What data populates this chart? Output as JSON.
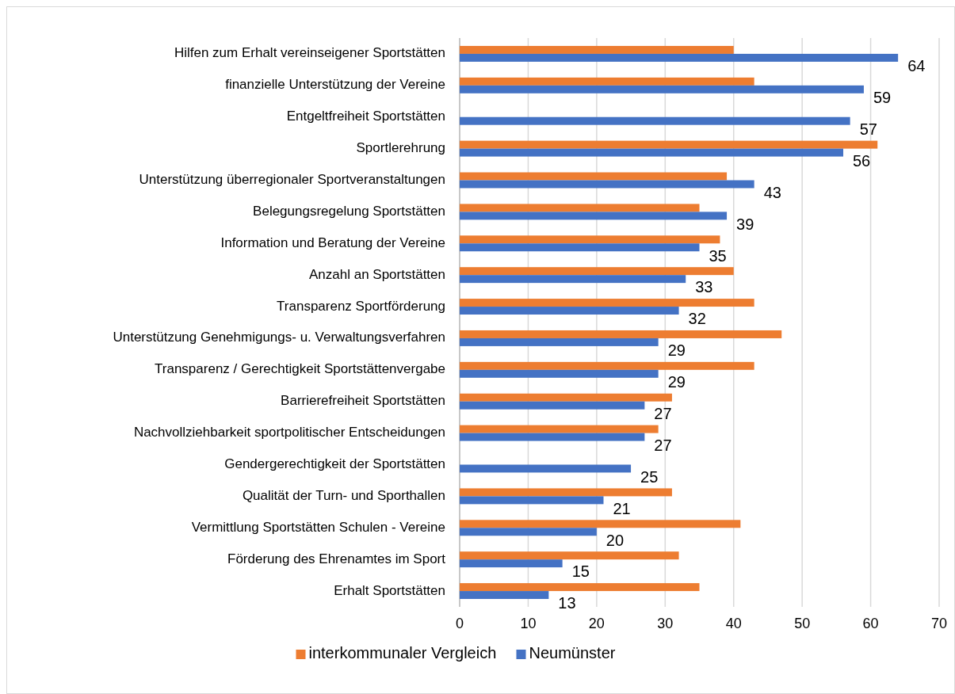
{
  "chart_data": {
    "type": "bar",
    "orientation": "horizontal",
    "categories": [
      "Hilfen zum Erhalt vereinseigener Sportstätten",
      "finanzielle Unterstützung der Vereine",
      "Entgeltfreiheit Sportstätten",
      "Sportlerehrung",
      "Unterstützung überregionaler Sportveranstaltungen",
      "Belegungsregelung Sportstätten",
      "Information und Beratung der Vereine",
      "Anzahl an Sportstätten",
      "Transparenz Sportförderung",
      "Unterstützung Genehmigungs- u. Verwaltungsverfahren",
      "Transparenz / Gerechtigkeit Sportstättenvergabe",
      "Barrierefreiheit Sportstätten",
      "Nachvollziehbarkeit sportpolitischer Entscheidungen",
      "Gendergerechtigkeit der Sportstätten",
      "Qualität der Turn- und Sporthallen",
      "Vermittlung Sportstätten Schulen - Vereine",
      "Förderung des Ehrenamtes im Sport",
      "Erhalt Sportstätten"
    ],
    "series": [
      {
        "name": "interkommunaler Vergleich",
        "color": "#ed7d31",
        "values": [
          40,
          43,
          null,
          61,
          39,
          35,
          38,
          40,
          43,
          47,
          43,
          31,
          29,
          null,
          31,
          41,
          32,
          35
        ]
      },
      {
        "name": "Neumünster",
        "color": "#4472c4",
        "values": [
          64,
          59,
          57,
          56,
          43,
          39,
          35,
          33,
          32,
          29,
          29,
          27,
          27,
          25,
          21,
          20,
          15,
          13
        ],
        "value_labels": [
          "64",
          "59",
          "57",
          "56",
          "43",
          "39",
          "35",
          "33",
          "32",
          "29",
          "29",
          "27",
          "27",
          "25",
          "21",
          "20",
          "15",
          "13"
        ]
      }
    ],
    "xlim": [
      0,
      70
    ],
    "xticks": [
      0,
      10,
      20,
      30,
      40,
      50,
      60,
      70
    ],
    "grid": "x",
    "legend": "bottom"
  }
}
